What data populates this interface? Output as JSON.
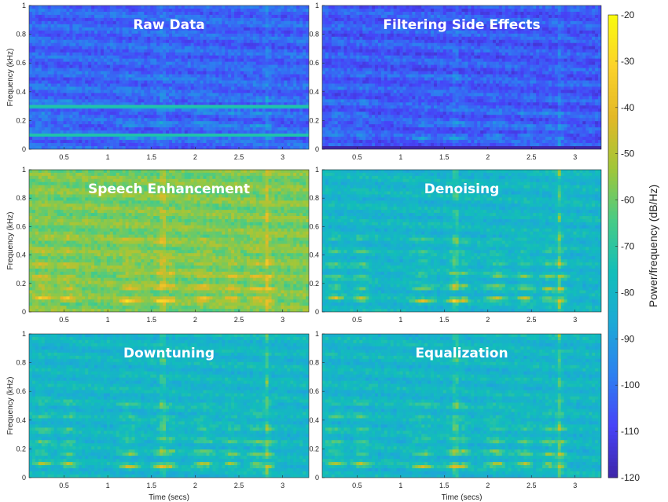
{
  "chart_data": {
    "type": "heatmap",
    "colorbar": {
      "label": "Power/frequency (dB/Hz)",
      "min": -120,
      "max": -20,
      "ticks": [
        "-20",
        "-30",
        "-40",
        "-50",
        "-60",
        "-70",
        "-80",
        "-90",
        "-100",
        "-110",
        "-120"
      ],
      "colormap": [
        "#3e26a8",
        "#4743f8",
        "#2d80f0",
        "#1ca9d6",
        "#12beb9",
        "#48cb86",
        "#a0c739",
        "#e2b827",
        "#fbd22b",
        "#f9fb0e"
      ]
    },
    "x_ticks": [
      "0.5",
      "1",
      "1.5",
      "2",
      "2.5",
      "3"
    ],
    "x_range_secs": [
      0.1,
      3.3
    ],
    "y_ticks": [
      "0",
      "0.2",
      "0.4",
      "0.6",
      "0.8",
      "1"
    ],
    "y_range_khz": [
      0,
      1
    ],
    "xlabel": "Time (secs)",
    "ylabel": "Frequency (kHz)",
    "panels": [
      {
        "title": "Raw Data",
        "base_db": -103,
        "speech_gain_db": 14,
        "tones_khz": [
          0.1,
          0.3
        ],
        "band_db": 0
      },
      {
        "title": "Filtering Side Effects",
        "base_db": -105,
        "speech_gain_db": 14,
        "low_band_db": -120
      },
      {
        "title": "Speech Enhancement",
        "base_db": -58,
        "speech_gain_db": 26
      },
      {
        "title": "Denoising",
        "base_db": -80,
        "speech_gain_db": 38
      },
      {
        "title": "Downtuning",
        "base_db": -80,
        "speech_gain_db": 34
      },
      {
        "title": "Equalization",
        "base_db": -80,
        "speech_gain_db": 34
      }
    ]
  }
}
